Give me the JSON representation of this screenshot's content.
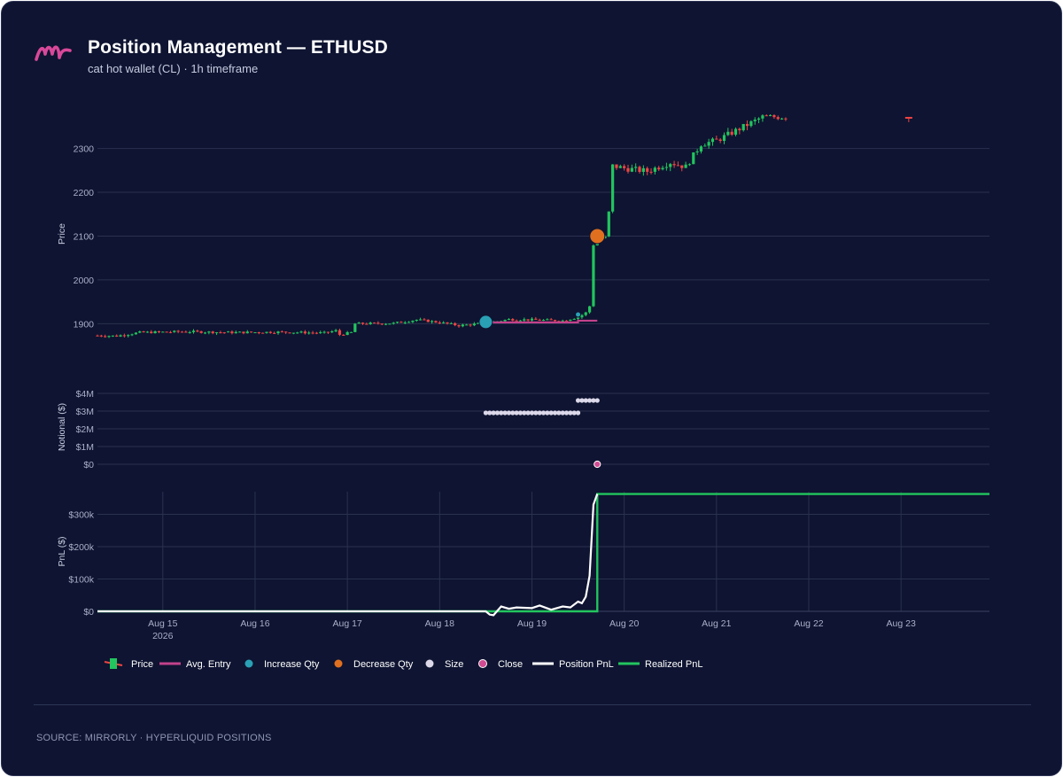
{
  "header": {
    "title": "Position Management — ETHUSD",
    "subtitle": "cat hot wallet (CL) · 1h timeframe",
    "logo_icon": "mirrorly-m-logo"
  },
  "footer": {
    "source": "SOURCE: MIRRORLY · HYPERLIQUID POSITIONS"
  },
  "colors": {
    "background": "#0e1431",
    "grid": "#2a3150",
    "up": "#22c55e",
    "down": "#ef4444",
    "avg_entry": "#c2418b",
    "increase": "#2aa0b5",
    "decrease": "#e0701f",
    "size": "#dcd8ea",
    "close": "#d14b92",
    "position_pnl": "#ffffff",
    "realized_pnl": "#22c55e"
  },
  "chart_data": {
    "type": "line",
    "x": {
      "start": "2026-08-14T07:00",
      "end": "2026-08-23T23:00",
      "ticks": [
        "Aug 15",
        "Aug 16",
        "Aug 17",
        "Aug 18",
        "Aug 19",
        "Aug 20",
        "Aug 21",
        "Aug 22",
        "Aug 23"
      ],
      "tick_year": "2026"
    },
    "panels": [
      {
        "name": "price",
        "ylabel": "Price",
        "yticks": [
          "1900",
          "2000",
          "2100",
          "2200",
          "2300"
        ],
        "ylim": [
          1830,
          2380
        ],
        "series": [
          {
            "name": "Price",
            "type": "candlestick",
            "close_path": [
              [
                "2026-08-14T07:00",
                1873
              ],
              [
                "2026-08-14T12:00",
                1872
              ],
              [
                "2026-08-14T18:00",
                1880
              ],
              [
                "2026-08-15T06:00",
                1882
              ],
              [
                "2026-08-15T18:00",
                1880
              ],
              [
                "2026-08-16T06:00",
                1881
              ],
              [
                "2026-08-16T18:00",
                1879
              ],
              [
                "2026-08-16T21:00",
                1884
              ],
              [
                "2026-08-16T22:00",
                1875
              ],
              [
                "2026-08-17T01:00",
                1880
              ],
              [
                "2026-08-17T02:00",
                1900
              ],
              [
                "2026-08-17T12:00",
                1901
              ],
              [
                "2026-08-17T18:00",
                1909
              ],
              [
                "2026-08-18T00:00",
                1903
              ],
              [
                "2026-08-18T05:00",
                1896
              ],
              [
                "2026-08-18T12:00",
                1901
              ],
              [
                "2026-08-18T18:00",
                1910
              ],
              [
                "2026-08-19T00:00",
                1909
              ],
              [
                "2026-08-19T08:00",
                1907
              ],
              [
                "2026-08-19T12:00",
                1915
              ],
              [
                "2026-08-19T14:00",
                1925
              ],
              [
                "2026-08-19T15:00",
                1940
              ],
              [
                "2026-08-19T16:00",
                2080
              ],
              [
                "2026-08-19T17:00",
                2092
              ],
              [
                "2026-08-19T19:00",
                2098
              ],
              [
                "2026-08-19T20:00",
                2155
              ],
              [
                "2026-08-19T21:00",
                2260
              ],
              [
                "2026-08-20T00:00",
                2255
              ],
              [
                "2026-08-20T06:00",
                2248
              ],
              [
                "2026-08-20T12:00",
                2268
              ],
              [
                "2026-08-20T16:00",
                2258
              ],
              [
                "2026-08-20T20:00",
                2310
              ],
              [
                "2026-08-21T00:00",
                2318
              ],
              [
                "2026-08-21T06:00",
                2345
              ],
              [
                "2026-08-21T12:00",
                2372
              ],
              [
                "2026-08-21T18:00",
                2372
              ]
            ],
            "last_candle": [
              "2026-08-23T02:00",
              2372
            ]
          },
          {
            "name": "Avg. Entry",
            "type": "step",
            "points": [
              [
                "2026-08-18T12:00",
                1903
              ],
              [
                "2026-08-19T12:00",
                1903
              ],
              [
                "2026-08-19T12:00",
                1907
              ],
              [
                "2026-08-19T17:00",
                1907
              ]
            ]
          },
          {
            "name": "Increase Qty",
            "type": "marker",
            "points": [
              [
                "2026-08-18T12:00",
                1904
              ],
              [
                "2026-08-19T12:00",
                1921
              ]
            ]
          },
          {
            "name": "Decrease Qty",
            "type": "marker",
            "points": [
              [
                "2026-08-19T17:00",
                2100
              ]
            ]
          }
        ]
      },
      {
        "name": "notional",
        "ylabel": "Notional ($)",
        "yticks": [
          "$0",
          "$1M",
          "$2M",
          "$3M",
          "$4M"
        ],
        "ylim": [
          0,
          4.2
        ],
        "series": [
          {
            "name": "Size",
            "type": "dots",
            "unit": "$M",
            "points": [
              [
                "2026-08-18T12:00",
                "2026-08-19T12:00",
                2.9
              ],
              [
                "2026-08-19T12:00",
                "2026-08-19T17:00",
                3.6
              ]
            ]
          },
          {
            "name": "Close",
            "type": "marker",
            "points": [
              [
                "2026-08-19T17:00",
                0
              ]
            ]
          }
        ]
      },
      {
        "name": "pnl",
        "ylabel": "PnL ($)",
        "yticks": [
          "$0",
          "$100k",
          "$200k",
          "$300k"
        ],
        "ylim": [
          0,
          370
        ],
        "series": [
          {
            "name": "Position PnL",
            "type": "line",
            "unit": "$k",
            "points": [
              [
                "2026-08-14T07:00",
                0
              ],
              [
                "2026-08-18T12:00",
                0
              ],
              [
                "2026-08-18T13:00",
                -10
              ],
              [
                "2026-08-18T14:00",
                -12
              ],
              [
                "2026-08-18T16:00",
                15
              ],
              [
                "2026-08-18T18:00",
                8
              ],
              [
                "2026-08-18T20:00",
                12
              ],
              [
                "2026-08-19T00:00",
                10
              ],
              [
                "2026-08-19T02:00",
                18
              ],
              [
                "2026-08-19T05:00",
                5
              ],
              [
                "2026-08-19T08:00",
                15
              ],
              [
                "2026-08-19T10:00",
                12
              ],
              [
                "2026-08-19T12:00",
                30
              ],
              [
                "2026-08-19T13:00",
                25
              ],
              [
                "2026-08-19T14:00",
                45
              ],
              [
                "2026-08-19T15:00",
                110
              ],
              [
                "2026-08-19T16:00",
                330
              ],
              [
                "2026-08-19T17:00",
                363
              ]
            ]
          },
          {
            "name": "Realized PnL",
            "type": "line",
            "unit": "$k",
            "points": [
              [
                "2026-08-14T07:00",
                0
              ],
              [
                "2026-08-19T17:00",
                0
              ],
              [
                "2026-08-19T17:00",
                363
              ],
              [
                "2026-08-23T23:00",
                363
              ]
            ]
          }
        ]
      }
    ],
    "legend": {
      "placement": "bottom-left",
      "items": [
        "Price",
        "Avg. Entry",
        "Increase Qty",
        "Decrease Qty",
        "Size",
        "Close",
        "Position PnL",
        "Realized PnL"
      ]
    }
  }
}
